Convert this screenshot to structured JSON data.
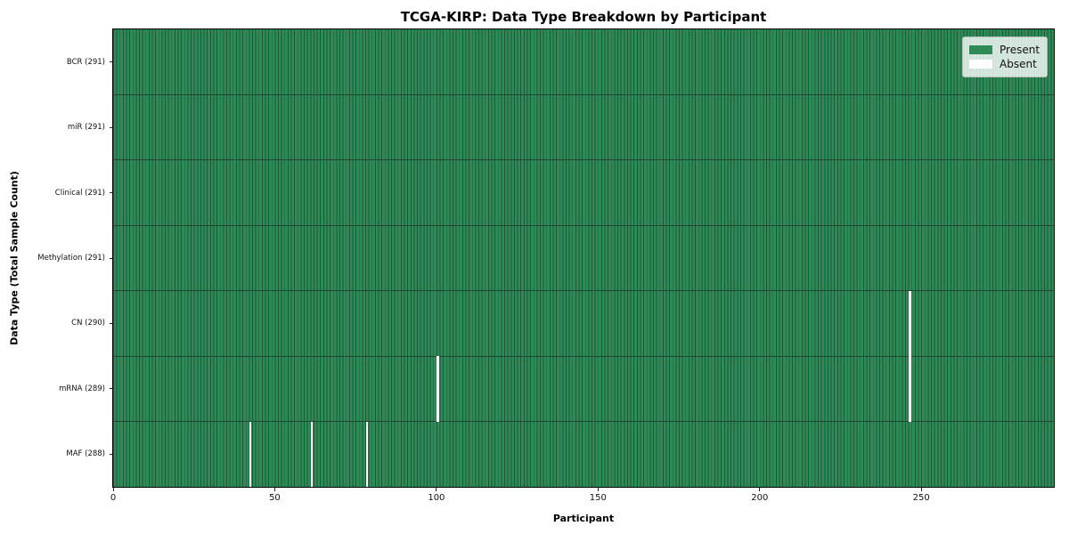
{
  "chart_data": {
    "type": "heatmap",
    "title": "TCGA-KIRP: Data Type Breakdown by Participant",
    "xlabel": "Participant",
    "ylabel": "Data Type (Total Sample Count)",
    "n_participants": 291,
    "x_ticks": [
      0,
      50,
      100,
      150,
      200,
      250
    ],
    "rows": [
      {
        "label": "BCR (291)",
        "data_type": "BCR",
        "present_count": 291,
        "absent_participants": []
      },
      {
        "label": "miR (291)",
        "data_type": "miR",
        "present_count": 291,
        "absent_participants": []
      },
      {
        "label": "Clinical (291)",
        "data_type": "Clinical",
        "present_count": 291,
        "absent_participants": []
      },
      {
        "label": "Methylation (291)",
        "data_type": "Methylation",
        "present_count": 291,
        "absent_participants": []
      },
      {
        "label": "CN (290)",
        "data_type": "CN",
        "present_count": 290,
        "absent_participants": [
          246
        ]
      },
      {
        "label": "mRNA (289)",
        "data_type": "mRNA",
        "present_count": 289,
        "absent_participants": [
          100,
          246
        ]
      },
      {
        "label": "MAF (288)",
        "data_type": "MAF",
        "present_count": 288,
        "absent_participants": [
          42,
          61,
          78
        ]
      }
    ],
    "legend": [
      {
        "label": "Present",
        "color": "#2e8b57"
      },
      {
        "label": "Absent",
        "color": "#ffffff"
      }
    ],
    "colors": {
      "present": "#2e8b57",
      "absent": "#ffffff",
      "cell_edge": "#1d5737",
      "row_divider": "#1f4630",
      "axis_border": "#000000"
    },
    "layout": {
      "grid": "cell-edges-visible",
      "legend_position": "upper-right"
    }
  }
}
